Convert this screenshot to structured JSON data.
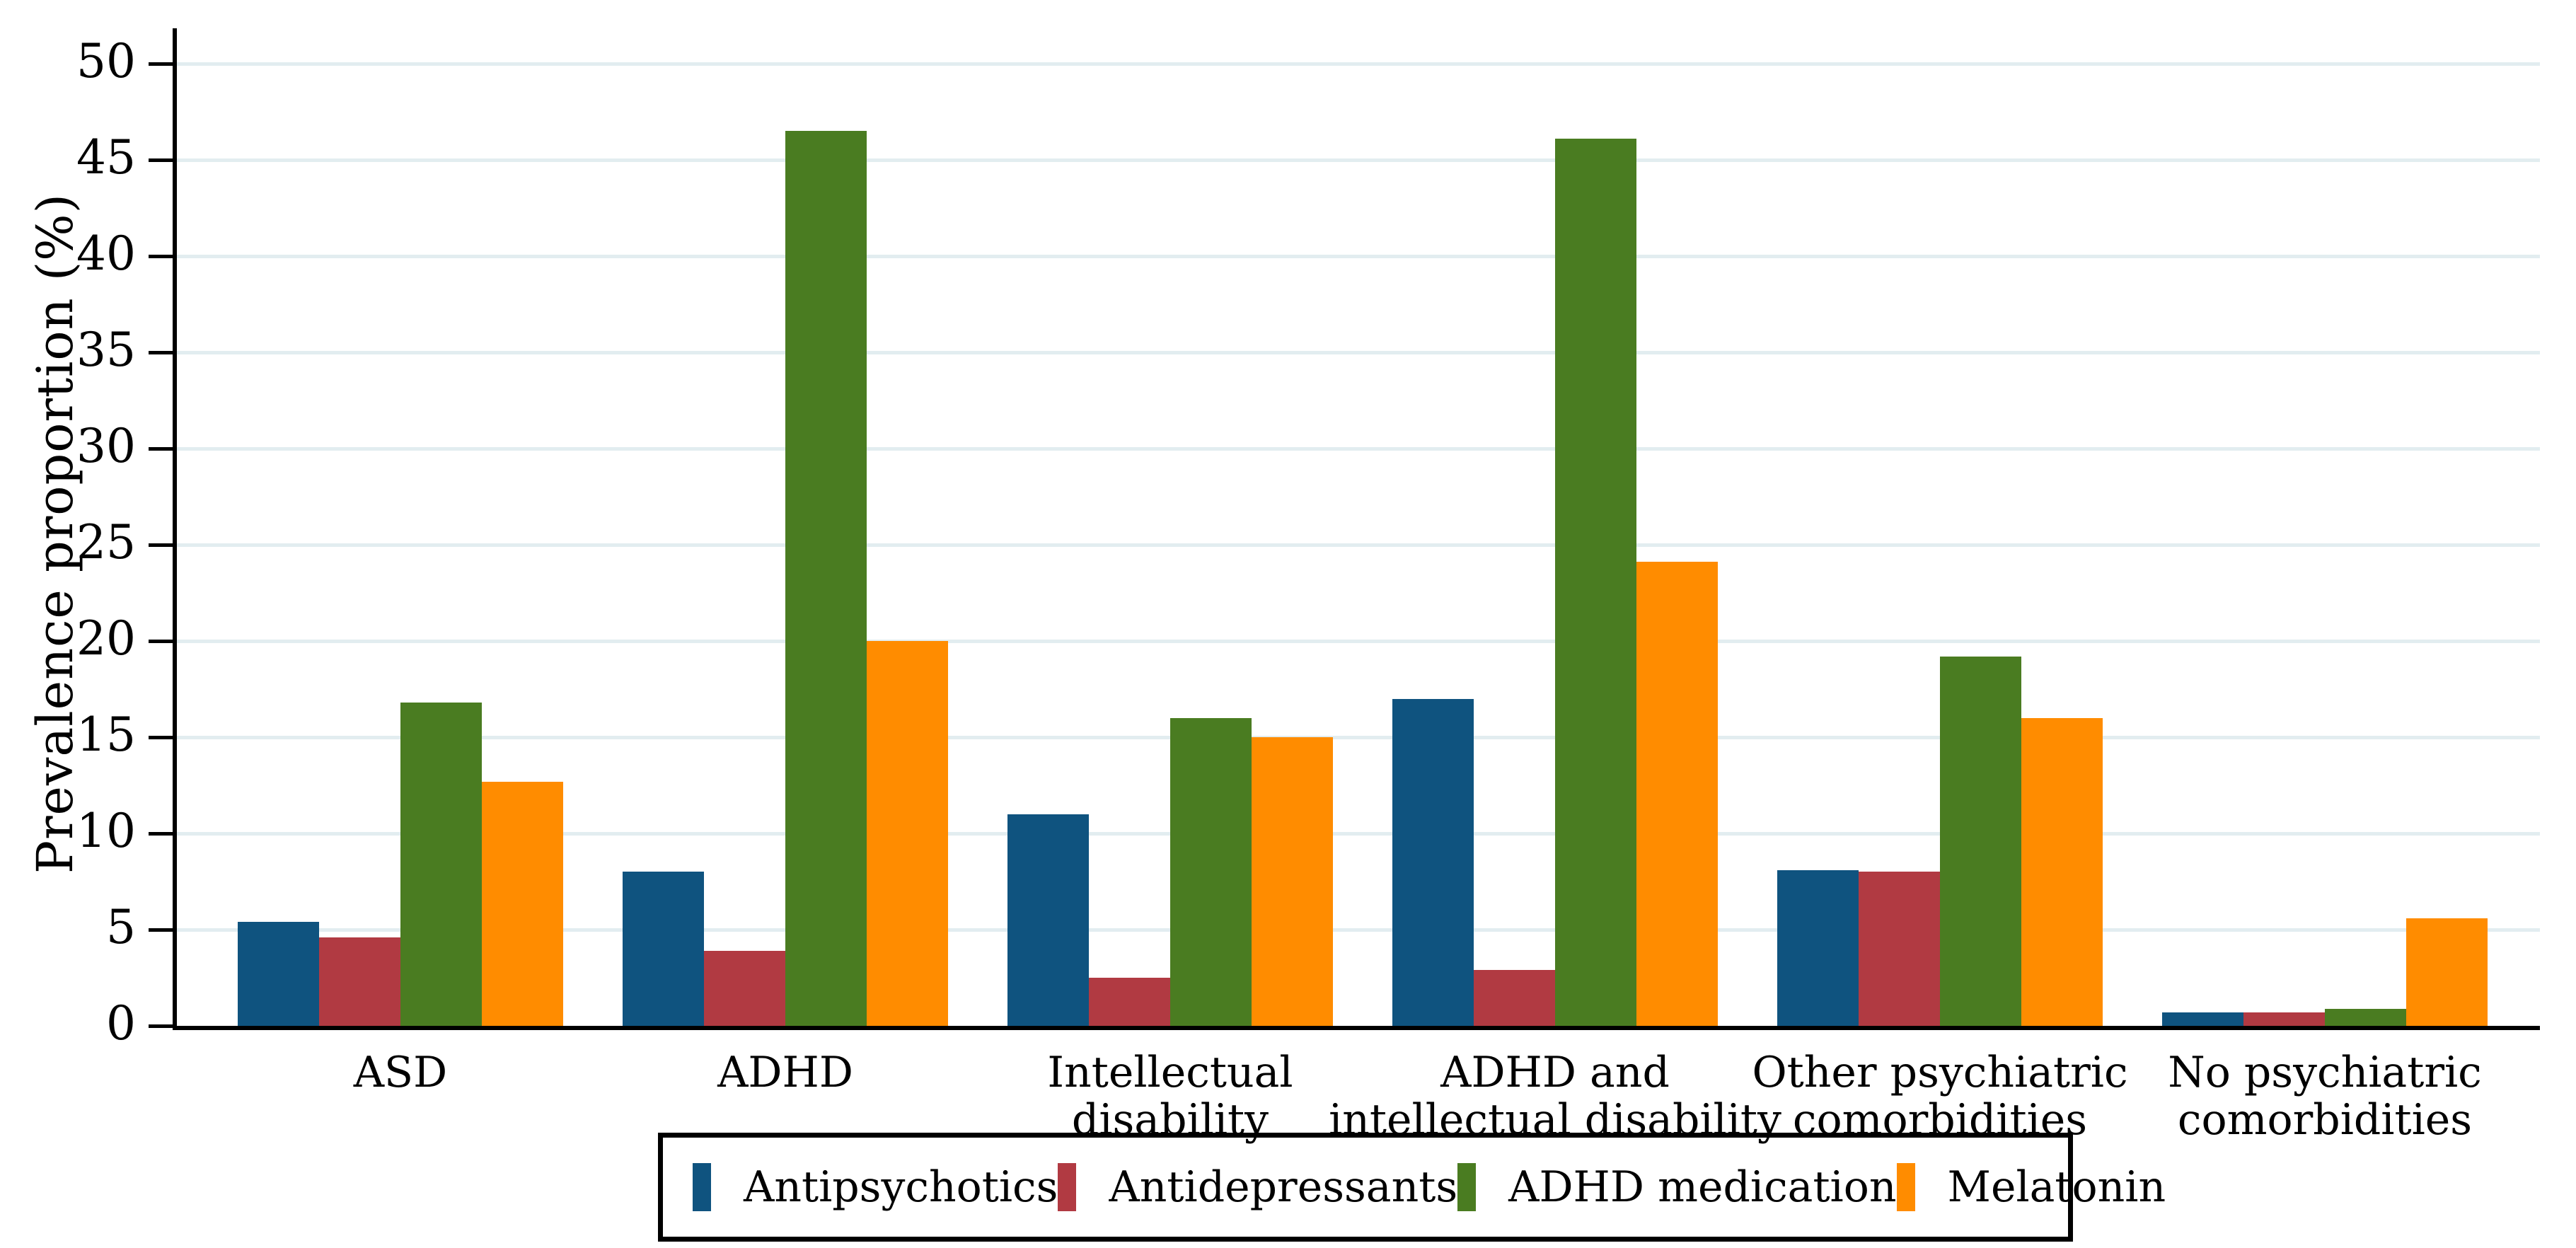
{
  "chart_data": {
    "type": "bar",
    "title": "",
    "xlabel": "",
    "ylabel": "Prevalence proportion (%)",
    "ylim": [
      0,
      50
    ],
    "yticks": [
      0,
      5,
      10,
      15,
      20,
      25,
      30,
      35,
      40,
      45,
      50
    ],
    "grid": "horizontal",
    "legend_position": "bottom",
    "categories": [
      "ASD",
      "ADHD",
      "Intellectual\ndisability",
      "ADHD and\nintellectual disability",
      "Other psychiatric\ncomorbidities",
      "No psychiatric\ncomorbidities"
    ],
    "series": [
      {
        "name": "Antipsychotics",
        "color": "#0f537f",
        "values": [
          5.4,
          8.0,
          11.0,
          17.0,
          8.1,
          0.7
        ]
      },
      {
        "name": "Antidepressants",
        "color": "#b13a42",
        "values": [
          4.6,
          3.9,
          2.5,
          2.9,
          8.0,
          0.7
        ]
      },
      {
        "name": "ADHD medication",
        "color": "#4a7c21",
        "values": [
          16.8,
          46.5,
          16.0,
          46.1,
          19.2,
          0.9
        ]
      },
      {
        "name": "Melatonin",
        "color": "#ff8c00",
        "values": [
          12.7,
          20.0,
          15.0,
          24.1,
          16.0,
          5.6
        ]
      }
    ],
    "colors": {
      "axis": "#000000",
      "gridline": "#e2edf0",
      "background": "#ffffff",
      "text": "#000000"
    }
  }
}
